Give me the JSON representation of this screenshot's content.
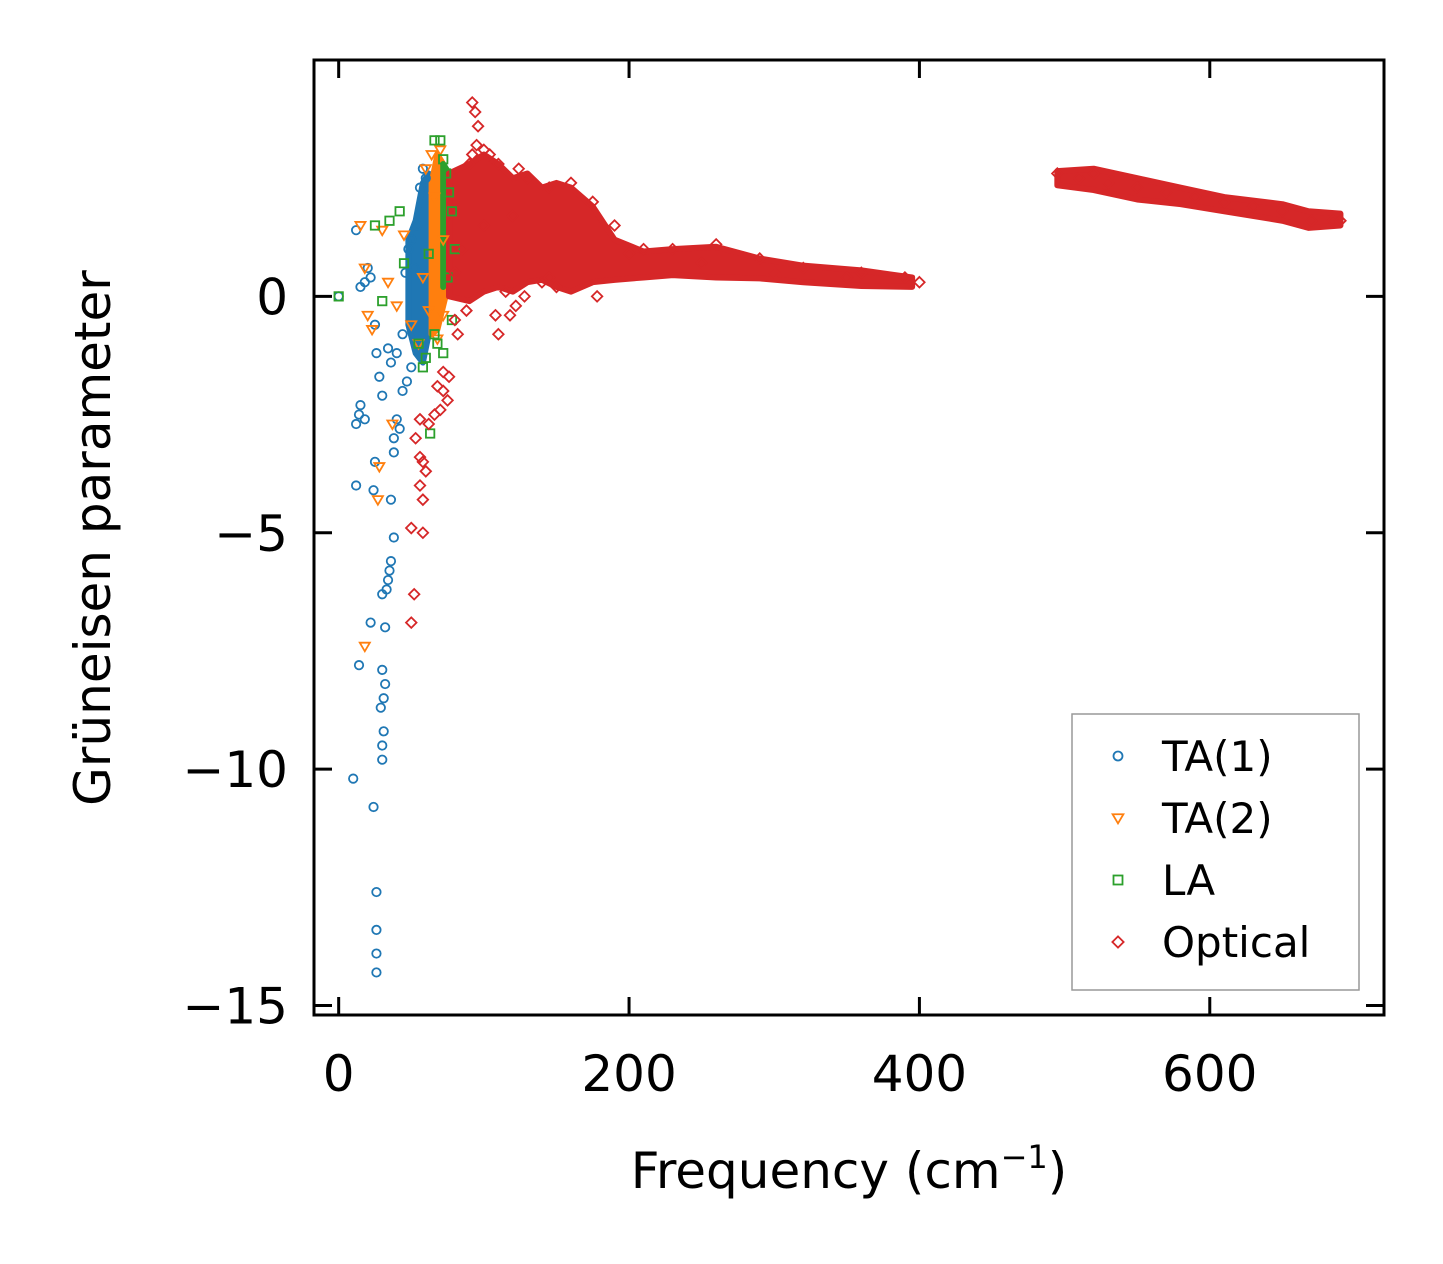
{
  "chart_data": {
    "type": "scatter",
    "title": "",
    "xlabel": "Frequency (cm",
    "xlabel_sup": "−1",
    "xlabel_close": ")",
    "ylabel": "Grüneisen parameter",
    "xlim": [
      -17,
      720
    ],
    "ylim": [
      -15.2,
      5.0
    ],
    "xticks": [
      0,
      200,
      400,
      600
    ],
    "xtick_labels": [
      "0",
      "200",
      "400",
      "600"
    ],
    "yticks": [
      0,
      -5,
      -10,
      -15
    ],
    "ytick_labels": [
      "0",
      "−5",
      "−10",
      "−15"
    ],
    "grid": false,
    "legend_position": "lower-right",
    "colors": {
      "ta1": "#1f77b4",
      "ta2": "#ff7f0e",
      "la": "#2ca02c",
      "optical": "#d62728",
      "legend_border": "#999999"
    },
    "series": [
      {
        "name": "TA(1)",
        "marker": "circle",
        "points": [
          [
            0,
            0
          ],
          [
            12,
            1.4
          ],
          [
            15,
            0.2
          ],
          [
            18,
            0.3
          ],
          [
            20,
            0.6
          ],
          [
            22,
            0.4
          ],
          [
            25,
            -0.6
          ],
          [
            26,
            -1.2
          ],
          [
            28,
            -1.7
          ],
          [
            30,
            -2.1
          ],
          [
            15,
            -2.3
          ],
          [
            14,
            -2.5
          ],
          [
            12,
            -2.7
          ],
          [
            18,
            -2.6
          ],
          [
            25,
            -3.5
          ],
          [
            12,
            -4.0
          ],
          [
            24,
            -4.1
          ],
          [
            36,
            -4.3
          ],
          [
            38,
            -5.1
          ],
          [
            36,
            -5.6
          ],
          [
            35,
            -5.8
          ],
          [
            34,
            -6.0
          ],
          [
            33,
            -6.2
          ],
          [
            30,
            -6.3
          ],
          [
            22,
            -6.9
          ],
          [
            32,
            -7.0
          ],
          [
            14,
            -7.8
          ],
          [
            30,
            -7.9
          ],
          [
            32,
            -8.2
          ],
          [
            31,
            -8.5
          ],
          [
            29,
            -8.7
          ],
          [
            31,
            -9.2
          ],
          [
            30,
            -9.5
          ],
          [
            30,
            -9.8
          ],
          [
            10,
            -10.2
          ],
          [
            24,
            -10.8
          ],
          [
            26,
            -12.6
          ],
          [
            26,
            -13.4
          ],
          [
            26,
            -13.9
          ],
          [
            26,
            -14.3
          ],
          [
            40,
            -2.6
          ],
          [
            42,
            -2.8
          ],
          [
            38,
            -3.0
          ],
          [
            44,
            -2.0
          ],
          [
            47,
            -1.8
          ],
          [
            50,
            -1.5
          ],
          [
            40,
            -1.2
          ],
          [
            46,
            0.5
          ],
          [
            50,
            1.2
          ],
          [
            54,
            1.5
          ],
          [
            56,
            2.3
          ],
          [
            58,
            2.7
          ],
          [
            60,
            2.5
          ],
          [
            48,
            1.0
          ],
          [
            52,
            0.6
          ],
          [
            44,
            -0.8
          ],
          [
            34,
            -1.1
          ],
          [
            36,
            -1.4
          ],
          [
            38,
            -3.3
          ]
        ]
      },
      {
        "name": "TA(2)",
        "marker": "triangle-down",
        "points": [
          [
            15,
            1.5
          ],
          [
            18,
            0.6
          ],
          [
            20,
            -0.4
          ],
          [
            23,
            -0.7
          ],
          [
            28,
            -3.6
          ],
          [
            27,
            -4.3
          ],
          [
            18,
            -7.4
          ],
          [
            34,
            0.3
          ],
          [
            40,
            -0.2
          ],
          [
            45,
            1.3
          ],
          [
            50,
            -0.6
          ],
          [
            55,
            -1.0
          ],
          [
            58,
            0.4
          ],
          [
            60,
            2.7
          ],
          [
            62,
            -0.3
          ],
          [
            64,
            3.0
          ],
          [
            66,
            2.1
          ],
          [
            68,
            -0.9
          ],
          [
            70,
            3.1
          ],
          [
            72,
            -0.4
          ],
          [
            72,
            1.2
          ],
          [
            30,
            1.4
          ],
          [
            37,
            -2.7
          ]
        ]
      },
      {
        "name": "LA",
        "marker": "square",
        "points": [
          [
            0,
            0
          ],
          [
            25,
            1.5
          ],
          [
            35,
            1.6
          ],
          [
            42,
            1.8
          ],
          [
            30,
            -0.1
          ],
          [
            45,
            0.7
          ],
          [
            55,
            -1.0
          ],
          [
            58,
            -1.5
          ],
          [
            60,
            -1.3
          ],
          [
            63,
            -2.9
          ],
          [
            66,
            -0.8
          ],
          [
            68,
            -1.0
          ],
          [
            70,
            3.3
          ],
          [
            72,
            2.9
          ],
          [
            74,
            2.6
          ],
          [
            76,
            2.2
          ],
          [
            78,
            1.8
          ],
          [
            80,
            1.0
          ],
          [
            78,
            -0.5
          ],
          [
            75,
            0.4
          ],
          [
            72,
            -1.2
          ],
          [
            66,
            3.3
          ],
          [
            62,
            0.9
          ]
        ]
      },
      {
        "name": "Optical",
        "marker": "diamond",
        "points": [
          [
            92,
            4.1
          ],
          [
            94,
            3.9
          ],
          [
            96,
            3.6
          ],
          [
            95,
            3.2
          ],
          [
            92,
            3.0
          ],
          [
            90,
            2.8
          ],
          [
            100,
            3.1
          ],
          [
            104,
            3.0
          ],
          [
            110,
            2.8
          ],
          [
            124,
            2.7
          ],
          [
            130,
            2.5
          ],
          [
            145,
            2.3
          ],
          [
            160,
            2.4
          ],
          [
            175,
            2.0
          ],
          [
            190,
            1.5
          ],
          [
            210,
            1.0
          ],
          [
            230,
            1.0
          ],
          [
            260,
            1.1
          ],
          [
            290,
            0.8
          ],
          [
            320,
            0.6
          ],
          [
            360,
            0.5
          ],
          [
            390,
            0.4
          ],
          [
            400,
            0.3
          ],
          [
            80,
            -0.5
          ],
          [
            82,
            -0.8
          ],
          [
            88,
            -0.3
          ],
          [
            108,
            -0.4
          ],
          [
            110,
            -0.8
          ],
          [
            115,
            0.1
          ],
          [
            118,
            -0.4
          ],
          [
            122,
            -0.2
          ],
          [
            128,
            0.0
          ],
          [
            140,
            0.3
          ],
          [
            150,
            0.2
          ],
          [
            178,
            0.0
          ],
          [
            76,
            -1.7
          ],
          [
            72,
            -2.0
          ],
          [
            70,
            -2.4
          ],
          [
            66,
            -2.5
          ],
          [
            62,
            -2.7
          ],
          [
            56,
            -2.6
          ],
          [
            53,
            -3.0
          ],
          [
            56,
            -3.4
          ],
          [
            58,
            -3.5
          ],
          [
            60,
            -3.7
          ],
          [
            56,
            -4.0
          ],
          [
            58,
            -4.3
          ],
          [
            50,
            -4.9
          ],
          [
            58,
            -5.0
          ],
          [
            52,
            -6.3
          ],
          [
            50,
            -6.9
          ],
          [
            68,
            -1.9
          ],
          [
            72,
            -1.6
          ],
          [
            75,
            -2.2
          ],
          [
            80,
            0.5
          ],
          [
            85,
            1.0
          ],
          [
            100,
            1.5
          ],
          [
            120,
            1.7
          ],
          [
            145,
            0.4
          ],
          [
            200,
            0.9
          ],
          [
            250,
            0.7
          ],
          [
            300,
            0.5
          ],
          [
            350,
            0.4
          ],
          [
            495,
            2.6
          ],
          [
            510,
            2.5
          ],
          [
            520,
            2.6
          ],
          [
            530,
            2.4
          ],
          [
            550,
            2.3
          ],
          [
            570,
            2.2
          ],
          [
            590,
            2.1
          ],
          [
            610,
            2.0
          ],
          [
            630,
            1.9
          ],
          [
            650,
            1.8
          ],
          [
            670,
            1.6
          ],
          [
            685,
            1.6
          ],
          [
            690,
            1.6
          ]
        ]
      }
    ],
    "dense_regions": [
      {
        "series": "TA(1)",
        "description_free": true,
        "x_range": [
          48,
          68
        ],
        "upper": [
          [
            48,
            1.2
          ],
          [
            53,
            1.6
          ],
          [
            58,
            2.4
          ],
          [
            62,
            2.6
          ],
          [
            66,
            2.2
          ],
          [
            68,
            1.6
          ]
        ],
        "lower": [
          [
            48,
            -0.6
          ],
          [
            53,
            -1.2
          ],
          [
            58,
            -1.4
          ],
          [
            62,
            -0.8
          ],
          [
            66,
            -0.2
          ],
          [
            68,
            0.2
          ]
        ]
      },
      {
        "series": "TA(2)",
        "description_free": true,
        "x_range": [
          64,
          76
        ],
        "upper": [
          [
            64,
            2.4
          ],
          [
            68,
            3.0
          ],
          [
            72,
            2.8
          ],
          [
            76,
            2.0
          ]
        ],
        "lower": [
          [
            64,
            -0.8
          ],
          [
            68,
            -0.7
          ],
          [
            72,
            -0.2
          ],
          [
            76,
            0.3
          ]
        ]
      },
      {
        "series": "LA",
        "description_free": true,
        "x_range": [
          72,
          82
        ],
        "upper": [
          [
            72,
            2.8
          ],
          [
            76,
            2.6
          ],
          [
            80,
            2.0
          ],
          [
            82,
            1.5
          ]
        ],
        "lower": [
          [
            72,
            0.2
          ],
          [
            76,
            0.5
          ],
          [
            80,
            0.8
          ],
          [
            82,
            1.0
          ]
        ]
      },
      {
        "series": "Optical",
        "description_free": true,
        "x_range": [
          76,
          395
        ],
        "upper": [
          [
            76,
            2.6
          ],
          [
            90,
            2.8
          ],
          [
            100,
            3.0
          ],
          [
            110,
            2.8
          ],
          [
            120,
            2.5
          ],
          [
            130,
            2.6
          ],
          [
            140,
            2.3
          ],
          [
            150,
            2.4
          ],
          [
            160,
            2.3
          ],
          [
            175,
            1.9
          ],
          [
            190,
            1.2
          ],
          [
            210,
            0.95
          ],
          [
            230,
            1.0
          ],
          [
            260,
            1.05
          ],
          [
            290,
            0.8
          ],
          [
            320,
            0.65
          ],
          [
            360,
            0.55
          ],
          [
            395,
            0.4
          ]
        ],
        "lower": [
          [
            76,
            0.0
          ],
          [
            90,
            -0.1
          ],
          [
            100,
            0.1
          ],
          [
            110,
            0.2
          ],
          [
            120,
            0.1
          ],
          [
            130,
            0.3
          ],
          [
            140,
            0.35
          ],
          [
            150,
            0.2
          ],
          [
            160,
            0.1
          ],
          [
            175,
            0.3
          ],
          [
            190,
            0.35
          ],
          [
            210,
            0.4
          ],
          [
            230,
            0.45
          ],
          [
            260,
            0.4
          ],
          [
            290,
            0.38
          ],
          [
            320,
            0.3
          ],
          [
            360,
            0.22
          ],
          [
            395,
            0.2
          ]
        ]
      },
      {
        "series": "Optical",
        "description_free": true,
        "x_range": [
          495,
          690
        ],
        "upper": [
          [
            495,
            2.65
          ],
          [
            520,
            2.7
          ],
          [
            550,
            2.5
          ],
          [
            580,
            2.3
          ],
          [
            610,
            2.1
          ],
          [
            650,
            1.95
          ],
          [
            668,
            1.8
          ],
          [
            690,
            1.75
          ]
        ],
        "lower": [
          [
            495,
            2.35
          ],
          [
            520,
            2.25
          ],
          [
            550,
            2.05
          ],
          [
            580,
            1.95
          ],
          [
            610,
            1.8
          ],
          [
            650,
            1.6
          ],
          [
            668,
            1.45
          ],
          [
            690,
            1.5
          ]
        ]
      }
    ]
  }
}
